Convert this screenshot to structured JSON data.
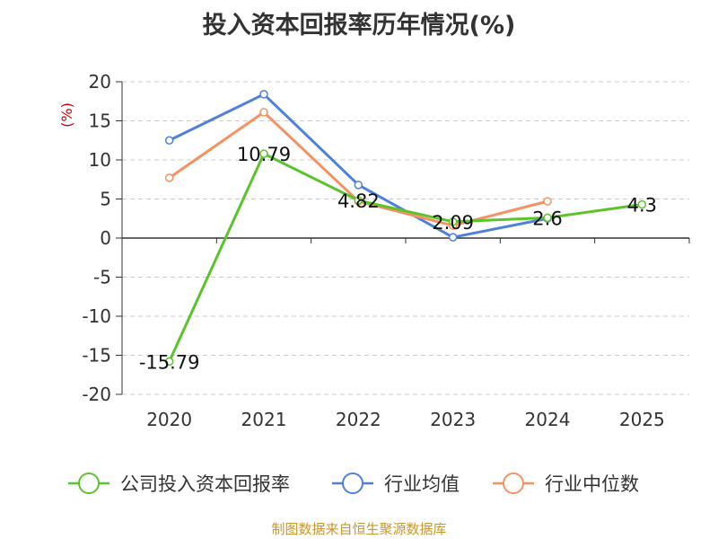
{
  "title": "投入资本回报率历年情况(%)",
  "source_note": "制图数据来自恒生聚源数据库",
  "chart_data": {
    "type": "line",
    "title": "投入资本回报率历年情况(%)",
    "ylabel": "(%)",
    "categories": [
      "2020",
      "2021",
      "2022",
      "2023",
      "2024",
      "2025"
    ],
    "ylim": [
      -20,
      20
    ],
    "yticks": [
      "20",
      "15",
      "10",
      "5",
      "0",
      "-5",
      "-10",
      "-15",
      "-20"
    ],
    "grid": true,
    "legend_position": "bottom",
    "series": [
      {
        "name": "公司投入资本回报率",
        "color": "#5bc42c",
        "values": [
          -15.79,
          10.79,
          4.82,
          2.09,
          2.6,
          4.3
        ],
        "labels": [
          "-15.79",
          "10.79",
          "4.82",
          "2.09",
          "2.6",
          "4.3"
        ]
      },
      {
        "name": "行业均值",
        "color": "#4f80db",
        "values": [
          12.5,
          18.4,
          6.8,
          0.1,
          2.5,
          null
        ]
      },
      {
        "name": "行业中位数",
        "color": "#f59262",
        "values": [
          7.7,
          16.1,
          4.7,
          1.6,
          4.7,
          null
        ]
      }
    ]
  }
}
